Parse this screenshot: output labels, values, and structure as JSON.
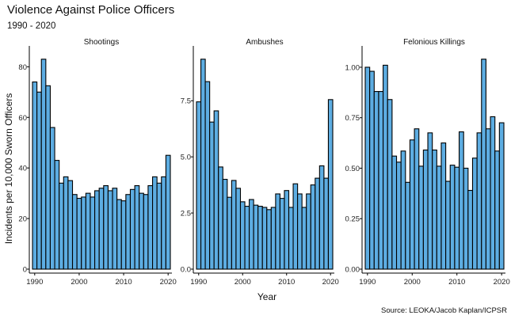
{
  "title": "Violence Against Police Officers",
  "subtitle": "1990 - 2020",
  "xlabel": "Year",
  "ylabel": "Incidents per 10,000 Sworn Officers",
  "caption": "Source: LEOKA/Jacob Kaplan/ICPSR",
  "colors": {
    "bar_fill": "#5dade2",
    "bar_stroke": "#000000"
  },
  "chart_data": [
    {
      "type": "bar",
      "panel": "Shootings",
      "x": [
        1990,
        1991,
        1992,
        1993,
        1994,
        1995,
        1996,
        1997,
        1998,
        1999,
        2000,
        2001,
        2002,
        2003,
        2004,
        2005,
        2006,
        2007,
        2008,
        2009,
        2010,
        2011,
        2012,
        2013,
        2014,
        2015,
        2016,
        2017,
        2018,
        2019,
        2020
      ],
      "values": [
        74,
        70,
        83,
        72.5,
        56,
        43,
        34,
        36.5,
        35,
        29.5,
        28,
        28.5,
        30,
        28.5,
        31,
        32,
        33,
        31,
        32,
        27.5,
        27,
        29.5,
        31.5,
        33,
        30,
        29.5,
        33,
        36.5,
        34,
        36.5,
        45
      ],
      "xticks": [
        1990,
        2000,
        2010,
        2020
      ],
      "yticks": [
        "0",
        "20",
        "40",
        "60",
        "80"
      ],
      "yticks_values": [
        0,
        20,
        40,
        60,
        80
      ],
      "ylim": [
        0,
        87
      ]
    },
    {
      "type": "bar",
      "panel": "Ambushes",
      "x": [
        1990,
        1991,
        1992,
        1993,
        1994,
        1995,
        1996,
        1997,
        1998,
        1999,
        2000,
        2001,
        2002,
        2003,
        2004,
        2005,
        2006,
        2007,
        2008,
        2009,
        2010,
        2011,
        2012,
        2013,
        2014,
        2015,
        2016,
        2017,
        2018,
        2019,
        2020
      ],
      "values": [
        7.45,
        9.35,
        8.35,
        6.55,
        7.05,
        4.55,
        4.0,
        3.2,
        3.95,
        3.6,
        3.0,
        2.8,
        3.1,
        2.85,
        2.8,
        2.75,
        2.65,
        2.75,
        3.35,
        3.15,
        3.5,
        2.75,
        3.8,
        3.35,
        2.75,
        3.35,
        3.75,
        4.05,
        4.6,
        4.05,
        7.55
      ],
      "xticks": [
        1990,
        2000,
        2010,
        2020
      ],
      "yticks": [
        "0.0",
        "2.5",
        "5.0",
        "7.5"
      ],
      "yticks_values": [
        0,
        2.5,
        5,
        7.5
      ],
      "ylim": [
        0,
        9.8
      ]
    },
    {
      "type": "bar",
      "panel": "Felonious Killings",
      "x": [
        1990,
        1991,
        1992,
        1993,
        1994,
        1995,
        1996,
        1997,
        1998,
        1999,
        2000,
        2001,
        2002,
        2003,
        2004,
        2005,
        2006,
        2007,
        2008,
        2009,
        2010,
        2011,
        2012,
        2013,
        2014,
        2015,
        2016,
        2017,
        2018,
        2019,
        2020
      ],
      "values": [
        1.0,
        0.98,
        0.88,
        0.88,
        1.01,
        0.84,
        0.56,
        0.53,
        0.585,
        0.43,
        0.64,
        0.695,
        0.51,
        0.59,
        0.675,
        0.59,
        0.51,
        0.625,
        0.435,
        0.515,
        0.505,
        0.68,
        0.5,
        0.39,
        0.55,
        0.675,
        1.04,
        0.695,
        0.755,
        0.585,
        0.725
      ],
      "xticks": [
        1990,
        2000,
        2010,
        2020
      ],
      "yticks": [
        "0.00",
        "0.25",
        "0.50",
        "0.75",
        "1.00"
      ],
      "yticks_values": [
        0,
        0.25,
        0.5,
        0.75,
        1.0
      ],
      "ylim": [
        0,
        1.09
      ]
    }
  ]
}
